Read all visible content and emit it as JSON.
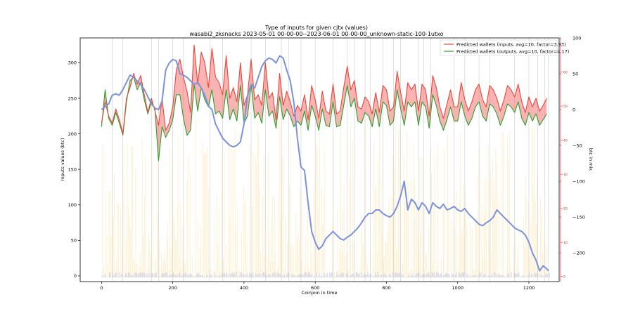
{
  "chart_data": {
    "type": "line",
    "title": "Type of inputs for given cjtx (values)",
    "subtitle": "wasabi2_zksnacks 2023-05-01 00-00-00--2023-06-01 00-00-00_unknown-static-100-1utxo",
    "xlabel": "Coinjoin in time",
    "ylabel": "Inputs values (btc)",
    "y2label": "btc in mix",
    "xlim": [
      -60,
      1285
    ],
    "ylim": [
      -8,
      335
    ],
    "y2lim": [
      -240,
      100
    ],
    "y3lim": [
      -1.5,
      70
    ],
    "x_ticks": [
      0,
      200,
      400,
      600,
      800,
      1000,
      1200
    ],
    "y_ticks": [
      0,
      50,
      100,
      150,
      200,
      250,
      300
    ],
    "y2_ticks": [
      100,
      50,
      0,
      -50,
      -100,
      -150,
      -200
    ],
    "y3_ticks": [
      0,
      10,
      20,
      30,
      40,
      50,
      60
    ],
    "legend_position": "top-right",
    "colors": {
      "inputs": "#e8473a",
      "outputs": "#2ca02c",
      "btc_in_mix": "#7b92dc",
      "fill": "#f47474",
      "background_bars": "#f9d989",
      "small_bars": "#a7b0ee",
      "right_axis": "#4169e1",
      "inner_axis": "#d62728",
      "vlines": "#cccccc"
    },
    "vlines_x": [
      30,
      60,
      140,
      160,
      200,
      230,
      305,
      340,
      420,
      460,
      505,
      525,
      560,
      600,
      650,
      690,
      710,
      740,
      755,
      790,
      820,
      840,
      890,
      905,
      925,
      990,
      1020,
      1060,
      1090,
      1160,
      1200,
      1225,
      1245,
      1255
    ],
    "series": [
      {
        "name": "Predicted wallets (inputs, avg=10, factor=3.93)",
        "x": [
          0,
          10,
          20,
          30,
          40,
          50,
          60,
          70,
          80,
          90,
          100,
          110,
          120,
          130,
          140,
          150,
          160,
          170,
          180,
          190,
          200,
          210,
          220,
          230,
          240,
          250,
          260,
          270,
          280,
          290,
          300,
          310,
          320,
          330,
          340,
          350,
          360,
          370,
          380,
          390,
          400,
          410,
          420,
          430,
          440,
          450,
          460,
          470,
          480,
          490,
          500,
          510,
          520,
          530,
          540,
          550,
          560,
          570,
          580,
          590,
          600,
          610,
          620,
          630,
          640,
          650,
          660,
          670,
          680,
          690,
          700,
          710,
          720,
          730,
          740,
          750,
          760,
          770,
          780,
          790,
          800,
          810,
          820,
          830,
          840,
          850,
          860,
          870,
          880,
          890,
          900,
          910,
          920,
          930,
          940,
          950,
          960,
          970,
          980,
          990,
          1000,
          1010,
          1020,
          1030,
          1040,
          1050,
          1060,
          1070,
          1080,
          1090,
          1100,
          1110,
          1120,
          1130,
          1140,
          1150,
          1160,
          1170,
          1180,
          1190,
          1200,
          1210,
          1220,
          1230,
          1240,
          1250
        ],
        "values": [
          215,
          245,
          225,
          215,
          235,
          220,
          200,
          250,
          265,
          285,
          270,
          282,
          255,
          230,
          250,
          232,
          212,
          250,
          205,
          215,
          238,
          290,
          305,
          280,
          260,
          230,
          325,
          270,
          315,
          300,
          265,
          320,
          280,
          272,
          255,
          310,
          250,
          265,
          245,
          300,
          240,
          255,
          305,
          248,
          255,
          240,
          300,
          250,
          258,
          220,
          285,
          240,
          260,
          245,
          225,
          240,
          232,
          255,
          220,
          268,
          248,
          222,
          260,
          232,
          228,
          270,
          228,
          232,
          265,
          295,
          262,
          275,
          238,
          235,
          252,
          245,
          228,
          258,
          230,
          268,
          262,
          232,
          238,
          288,
          258,
          232,
          272,
          262,
          270,
          232,
          270,
          262,
          225,
          282,
          265,
          238,
          222,
          242,
          262,
          238,
          238,
          272,
          248,
          232,
          245,
          262,
          270,
          248,
          238,
          268,
          262,
          250,
          232,
          248,
          268,
          262,
          252,
          270,
          245,
          230,
          252,
          238,
          250,
          232,
          240,
          250
        ]
      },
      {
        "name": "Predicted wallets (outputs, avg=10, factor=4.17)",
        "x": [
          0,
          10,
          20,
          30,
          40,
          50,
          60,
          70,
          80,
          90,
          100,
          110,
          120,
          130,
          140,
          150,
          160,
          170,
          180,
          190,
          200,
          210,
          220,
          230,
          240,
          250,
          260,
          270,
          280,
          290,
          300,
          310,
          320,
          330,
          340,
          350,
          360,
          370,
          380,
          390,
          400,
          410,
          420,
          430,
          440,
          450,
          460,
          470,
          480,
          490,
          500,
          510,
          520,
          530,
          540,
          550,
          560,
          570,
          580,
          590,
          600,
          610,
          620,
          630,
          640,
          650,
          660,
          670,
          680,
          690,
          700,
          710,
          720,
          730,
          740,
          750,
          760,
          770,
          780,
          790,
          800,
          810,
          820,
          830,
          840,
          850,
          860,
          870,
          880,
          890,
          900,
          910,
          920,
          930,
          940,
          950,
          960,
          970,
          980,
          990,
          1000,
          1010,
          1020,
          1030,
          1040,
          1050,
          1060,
          1070,
          1080,
          1090,
          1100,
          1110,
          1120,
          1130,
          1140,
          1150,
          1160,
          1170,
          1180,
          1190,
          1200,
          1210,
          1220,
          1230,
          1240,
          1250
        ],
        "values": [
          210,
          262,
          222,
          212,
          230,
          215,
          198,
          245,
          275,
          280,
          262,
          272,
          248,
          228,
          245,
          235,
          162,
          210,
          195,
          205,
          220,
          255,
          255,
          222,
          198,
          205,
          270,
          232,
          265,
          248,
          238,
          262,
          228,
          232,
          222,
          262,
          220,
          235,
          218,
          268,
          215,
          225,
          270,
          222,
          230,
          215,
          262,
          225,
          232,
          208,
          252,
          220,
          235,
          225,
          210,
          218,
          212,
          232,
          205,
          240,
          225,
          205,
          235,
          212,
          210,
          245,
          210,
          212,
          240,
          268,
          238,
          250,
          218,
          215,
          230,
          225,
          210,
          235,
          210,
          245,
          240,
          212,
          218,
          262,
          235,
          212,
          245,
          238,
          245,
          212,
          245,
          238,
          208,
          255,
          240,
          218,
          205,
          220,
          238,
          218,
          218,
          245,
          225,
          212,
          222,
          238,
          245,
          225,
          218,
          242,
          238,
          228,
          212,
          225,
          242,
          238,
          230,
          245,
          222,
          212,
          230,
          218,
          228,
          212,
          220,
          228
        ]
      },
      {
        "name": "btc in mix",
        "axis": "right",
        "x": [
          0,
          10,
          20,
          30,
          40,
          50,
          60,
          70,
          80,
          90,
          100,
          110,
          120,
          130,
          140,
          150,
          160,
          170,
          180,
          190,
          200,
          210,
          220,
          230,
          240,
          250,
          260,
          270,
          280,
          290,
          300,
          310,
          320,
          330,
          340,
          350,
          360,
          370,
          380,
          390,
          400,
          410,
          420,
          430,
          440,
          450,
          460,
          470,
          480,
          490,
          500,
          510,
          520,
          530,
          540,
          550,
          560,
          570,
          580,
          590,
          600,
          610,
          620,
          630,
          640,
          650,
          660,
          670,
          680,
          690,
          700,
          710,
          720,
          730,
          740,
          750,
          760,
          770,
          780,
          790,
          800,
          810,
          820,
          830,
          840,
          850,
          860,
          870,
          880,
          890,
          900,
          910,
          920,
          930,
          940,
          950,
          960,
          970,
          980,
          990,
          1000,
          1010,
          1020,
          1030,
          1040,
          1050,
          1060,
          1070,
          1080,
          1090,
          1100,
          1110,
          1120,
          1130,
          1140,
          1150,
          1160,
          1170,
          1180,
          1190,
          1200,
          1210,
          1220,
          1230,
          1240,
          1250,
          1255
        ],
        "values": [
          0,
          4,
          8,
          20,
          22,
          20,
          28,
          38,
          48,
          45,
          40,
          35,
          28,
          18,
          8,
          2,
          0,
          12,
          55,
          65,
          70,
          68,
          50,
          48,
          45,
          40,
          35,
          38,
          30,
          20,
          5,
          0,
          -20,
          -30,
          -40,
          -45,
          -50,
          -52,
          -50,
          -45,
          -20,
          20,
          35,
          30,
          45,
          60,
          68,
          72,
          70,
          65,
          75,
          72,
          55,
          40,
          10,
          -40,
          -80,
          -85,
          -130,
          -170,
          -185,
          -195,
          -190,
          -180,
          -175,
          -170,
          -175,
          -180,
          -182,
          -178,
          -175,
          -170,
          -165,
          -158,
          -150,
          -145,
          -145,
          -140,
          -140,
          -145,
          -148,
          -150,
          -145,
          -135,
          -120,
          -100,
          -140,
          -125,
          -130,
          -140,
          -130,
          -135,
          -145,
          -130,
          -135,
          -138,
          -132,
          -140,
          -138,
          -135,
          -140,
          -142,
          -138,
          -145,
          -150,
          -155,
          -160,
          -162,
          -158,
          -155,
          -150,
          -140,
          -145,
          -150,
          -155,
          -160,
          -165,
          -168,
          -170,
          -175,
          -185,
          -200,
          -210,
          -225,
          -218,
          -222,
          -225
        ]
      }
    ]
  }
}
